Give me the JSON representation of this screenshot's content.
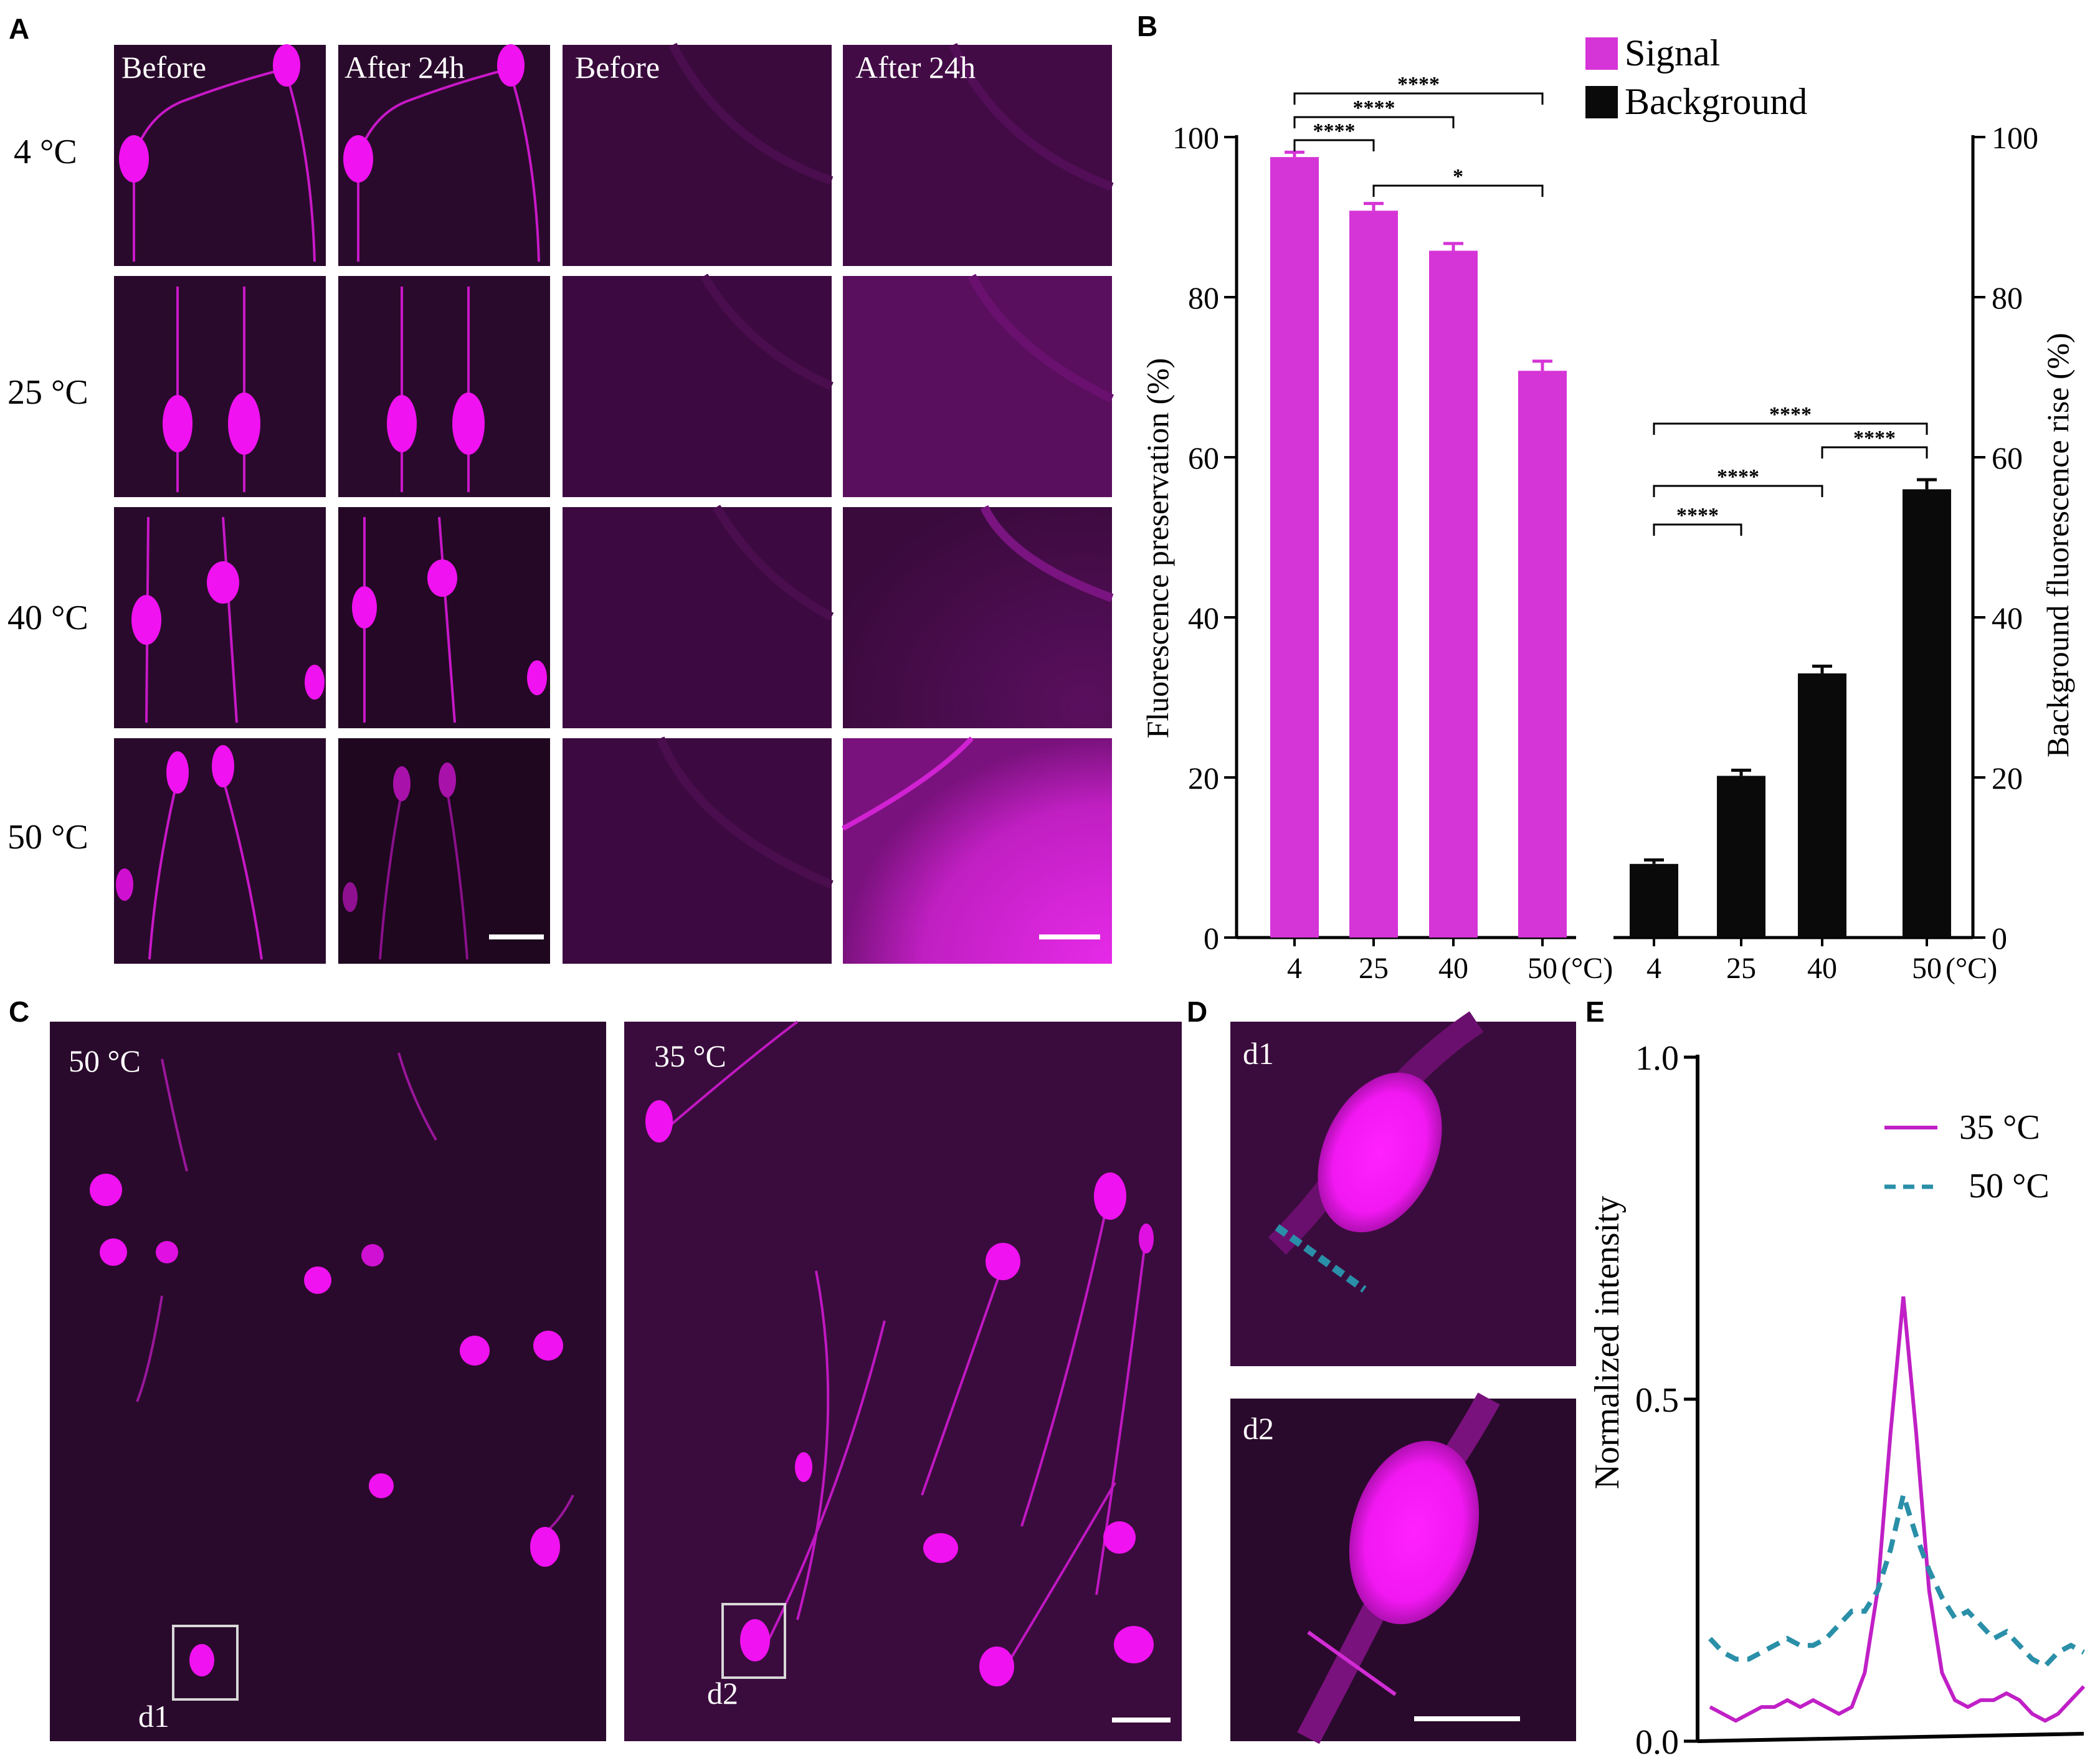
{
  "panels": {
    "A": {
      "label": "A",
      "col_headers": [
        "Before",
        "After 24h",
        "Before",
        "After 24h"
      ],
      "row_labels": [
        "4 °C",
        "25 °C",
        "40 °C",
        "50 °C"
      ]
    },
    "B": {
      "label": "B"
    },
    "C": {
      "label": "C",
      "left_title": "50 °C",
      "right_title": "35 °C",
      "left_box": "d1",
      "right_box": "d2"
    },
    "D": {
      "label": "D",
      "top_title": "d1",
      "bottom_title": "d2"
    },
    "E": {
      "label": "E"
    }
  },
  "colors": {
    "signal": "#d535d6",
    "background": "#0a0a0a",
    "magenta_image": "#ff1aff",
    "dark_tissue": "#2a0a2c",
    "teal_dashed": "#2a8fa8"
  },
  "chart_data": [
    {
      "type": "bar",
      "title": "",
      "ylabel": "Fluorescence preservation (%)",
      "ylabel_right": "Background fluorescence rise  (%)",
      "ylim": [
        0,
        100
      ],
      "yticks": [
        0,
        20,
        40,
        60,
        80,
        100
      ],
      "unit_label": "(°C)",
      "legend": [
        "Signal",
        "Background"
      ],
      "legend_placement": "top",
      "groups": [
        {
          "name": "Signal",
          "axis": "left",
          "categories": [
            "4",
            "25",
            "40",
            "50"
          ],
          "values": [
            97.5,
            90.8,
            85.8,
            70.8
          ],
          "errors": [
            0.6,
            0.9,
            0.9,
            1.2
          ]
        },
        {
          "name": "Background",
          "axis": "right",
          "categories": [
            "4",
            "25",
            "40",
            "50"
          ],
          "values": [
            9.2,
            20.2,
            33.0,
            56.0
          ],
          "errors": [
            0.5,
            0.7,
            0.9,
            1.2
          ]
        }
      ],
      "significance": [
        {
          "group": "Signal",
          "from": 0,
          "to": 3,
          "label": "****"
        },
        {
          "group": "Signal",
          "from": 0,
          "to": 2,
          "label": "****"
        },
        {
          "group": "Signal",
          "from": 0,
          "to": 1,
          "label": "****"
        },
        {
          "group": "Signal",
          "from": 1,
          "to": 3,
          "label": "*"
        },
        {
          "group": "Background",
          "from": 0,
          "to": 3,
          "label": "****"
        },
        {
          "group": "Background",
          "from": 2,
          "to": 3,
          "label": "****"
        },
        {
          "group": "Background",
          "from": 0,
          "to": 2,
          "label": "****"
        },
        {
          "group": "Background",
          "from": 0,
          "to": 1,
          "label": "****"
        }
      ]
    },
    {
      "type": "line",
      "title": "",
      "ylabel": "Normalized intensity",
      "xlabel": "",
      "ylim": [
        0,
        1
      ],
      "yticks": [
        "0.0",
        "0.5",
        "1.0"
      ],
      "legend_placement": "top-right",
      "series": [
        {
          "name": "35 °C",
          "style": "solid",
          "values": [
            0.05,
            0.04,
            0.03,
            0.04,
            0.05,
            0.05,
            0.06,
            0.05,
            0.06,
            0.05,
            0.04,
            0.05,
            0.1,
            0.22,
            0.45,
            0.65,
            0.45,
            0.22,
            0.1,
            0.06,
            0.05,
            0.06,
            0.06,
            0.07,
            0.06,
            0.04,
            0.03,
            0.04,
            0.06,
            0.08
          ]
        },
        {
          "name": "50 °C",
          "style": "dashed",
          "values": [
            0.15,
            0.13,
            0.12,
            0.12,
            0.13,
            0.14,
            0.15,
            0.14,
            0.14,
            0.15,
            0.17,
            0.19,
            0.19,
            0.22,
            0.28,
            0.36,
            0.3,
            0.25,
            0.21,
            0.18,
            0.19,
            0.17,
            0.15,
            0.16,
            0.14,
            0.12,
            0.11,
            0.13,
            0.14,
            0.13
          ]
        }
      ]
    }
  ]
}
